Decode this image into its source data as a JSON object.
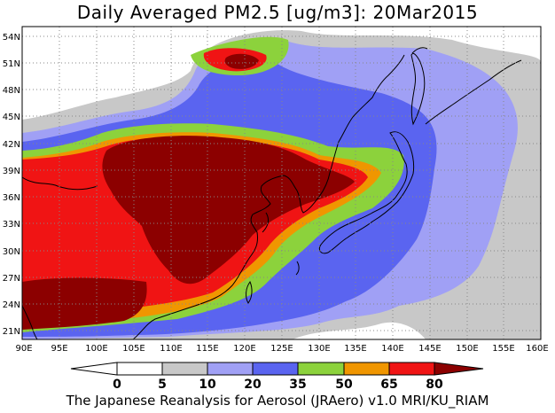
{
  "title": "Daily Averaged PM2.5 [ug/m3]: 20Mar2015",
  "footer": "The Japanese Reanalysis for Aerosol (JRAero) v1.0 MRI/KU_RIAM",
  "map": {
    "lon_range": [
      90,
      160
    ],
    "lat_range": [
      20,
      55
    ],
    "lon_ticks": [
      "90E",
      "95E",
      "100E",
      "105E",
      "110E",
      "115E",
      "120E",
      "125E",
      "130E",
      "135E",
      "140E",
      "145E",
      "150E",
      "155E",
      "160E"
    ],
    "lat_ticks": [
      "21N",
      "24N",
      "27N",
      "30N",
      "33N",
      "36N",
      "39N",
      "42N",
      "45N",
      "48N",
      "51N",
      "54N"
    ]
  },
  "colorbar": {
    "levels": [
      "0",
      "5",
      "10",
      "20",
      "35",
      "50",
      "65",
      "80"
    ],
    "colors": [
      "#ffffff",
      "#c8c8c8",
      "#a0a0f5",
      "#5a64f0",
      "#8cd23c",
      "#f09600",
      "#f01414",
      "#8c0000"
    ]
  }
}
